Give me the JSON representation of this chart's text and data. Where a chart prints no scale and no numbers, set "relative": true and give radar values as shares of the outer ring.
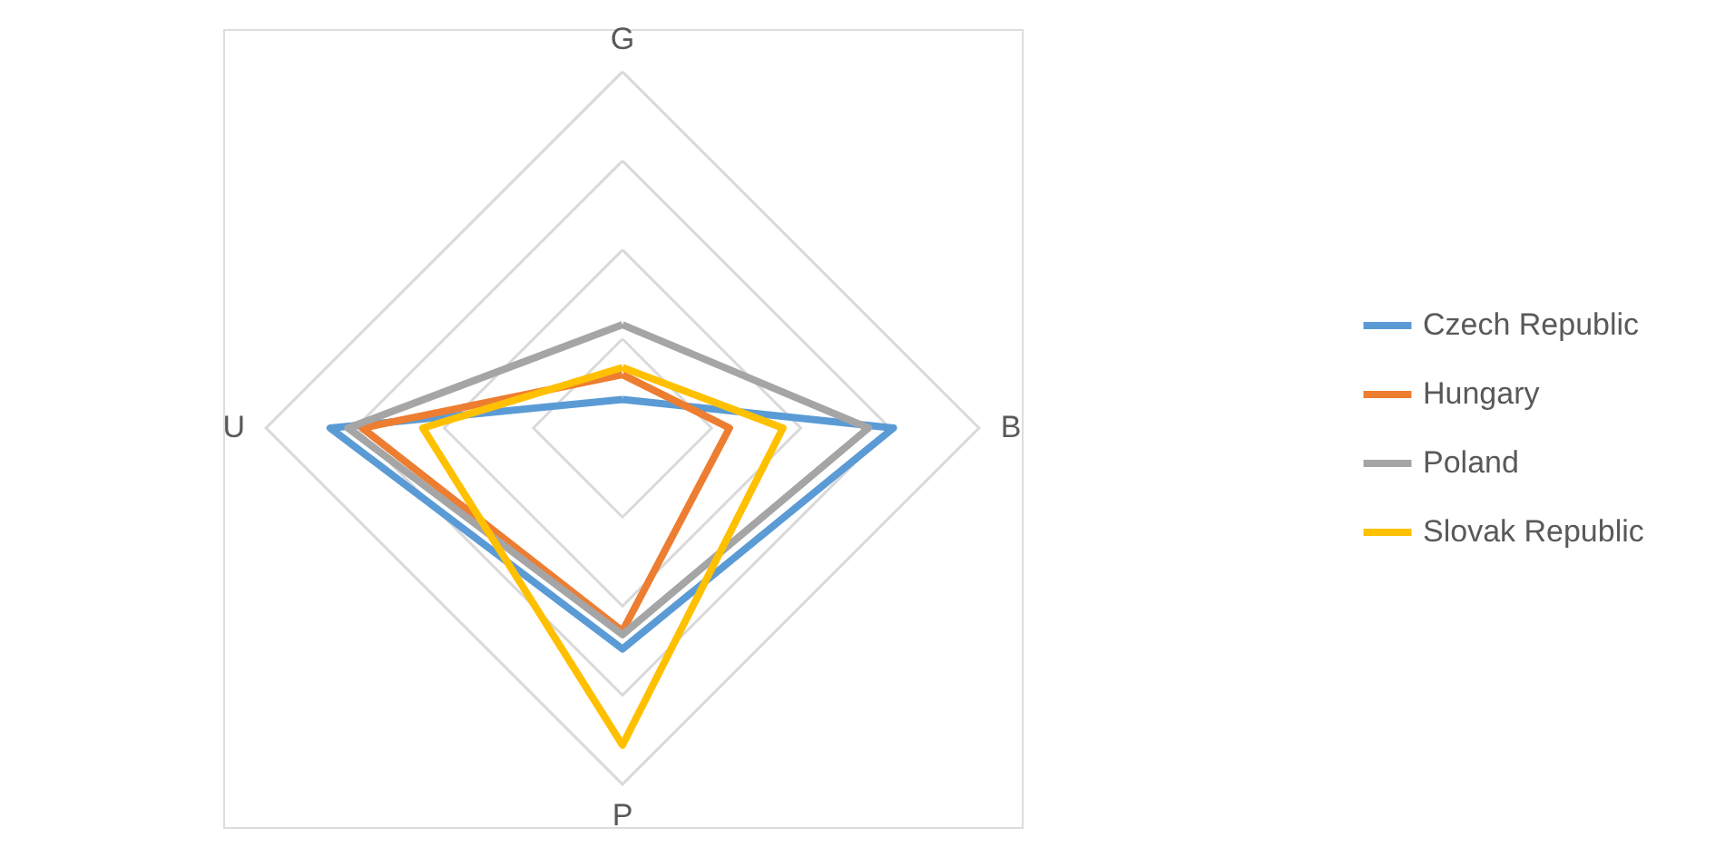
{
  "chart_data": {
    "type": "radar",
    "relative": true,
    "grid": true,
    "legend": "right",
    "line_style": "solid",
    "marker": "none",
    "categories": [
      "G",
      "B",
      "P",
      "U"
    ],
    "series": [
      {
        "name": "Czech Republic",
        "color": "#5b9bd5",
        "values": [
          0.08,
          0.76,
          0.62,
          0.82
        ]
      },
      {
        "name": "Hungary",
        "color": "#ed7d31",
        "values": [
          0.15,
          0.3,
          0.57,
          0.73
        ]
      },
      {
        "name": "Poland",
        "color": "#a5a5a5",
        "values": [
          0.29,
          0.69,
          0.58,
          0.77
        ]
      },
      {
        "name": "Slovak Republic",
        "color": "#ffc000",
        "values": [
          0.17,
          0.45,
          0.89,
          0.56
        ]
      }
    ]
  }
}
